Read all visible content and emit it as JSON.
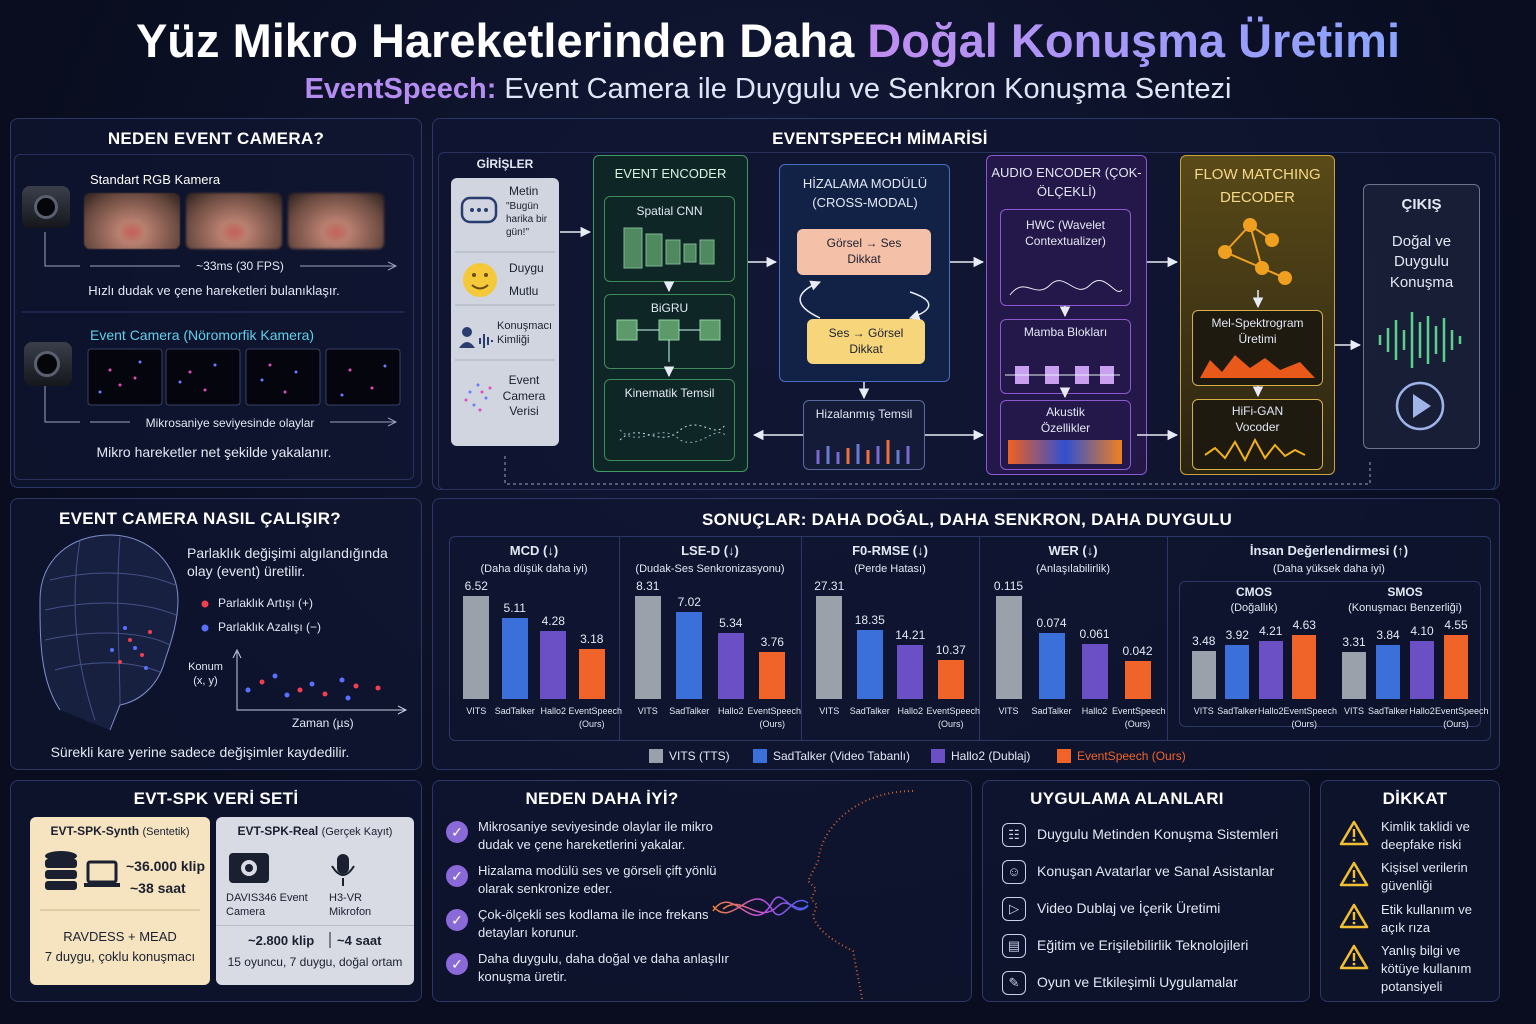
{
  "header": {
    "title_a": "Yüz Mikro Hareketlerinden Daha",
    "title_b": "Doğal Konuşma Üretimi",
    "subtitle_a": "EventSpeech:",
    "subtitle_b": "Event Camera ile Duygulu ve Senkron Konuşma Sentezi"
  },
  "why_event": {
    "title": "NEDEN EVENT CAMERA?",
    "rgb_label": "Standart RGB Kamera",
    "rgb_timing": "~33ms (30 FPS)",
    "rgb_note": "Hızlı dudak ve çene hareketleri bulanıklaşır.",
    "event_label": "Event Camera (Nöromorfik Kamera)",
    "event_timing": "Mikrosaniye seviyesinde olaylar",
    "event_note": "Mikro hareketler net şekilde yakalanır."
  },
  "how": {
    "title": "EVENT CAMERA NASIL ÇALIŞIR?",
    "desc": "Parlaklık değişimi algılandığında olay (event) üretilir.",
    "legend_pos": "Parlaklık Artışı (+)",
    "legend_neg": "Parlaklık Azalışı (−)",
    "y_label": "Konum (x, y)",
    "x_label": "Zaman (µs)",
    "note": "Sürekli kare yerine sadece değişimler kaydedilir."
  },
  "architecture": {
    "title": "EVENTSPEECH MİMARİSİ",
    "inputs": {
      "title": "GİRİŞLER",
      "text_label": "Metin",
      "text_example": "\"Bugün harika bir gün!\"",
      "emotion_label": "Duygu",
      "emotion_value": "Mutlu",
      "speaker": "Konuşmacı Kimliği",
      "event_data": "Event Camera Verisi"
    },
    "event_encoder": {
      "title": "EVENT ENCODER",
      "cnn": "Spatial CNN",
      "bigru": "BiGRU",
      "kinematic": "Kinematik Temsil"
    },
    "alignment": {
      "title": "HİZALAMA MODÜLÜ (CROSS-MODAL)",
      "v2a": "Görsel → Ses Dikkat",
      "a2v": "Ses → Görsel Dikkat",
      "aligned": "Hizalanmış Temsil"
    },
    "audio_encoder": {
      "title": "AUDIO ENCODER (ÇOK-ÖLÇEKLİ)",
      "hwc": "HWC (Wavelet Contextualizer)",
      "mamba": "Mamba Blokları",
      "acoustic": "Akustik Özellikler"
    },
    "decoder": {
      "title": "FLOW MATCHING DECODER",
      "mel": "Mel-Spektrogram Üretimi",
      "vocoder": "HiFi-GAN Vocoder"
    },
    "output": {
      "title": "ÇIKIŞ",
      "text": "Doğal ve Duygulu Konuşma"
    }
  },
  "results": {
    "title": "SONUÇLAR: DAHA DOĞAL, DAHA SENKRON, DAHA DUYGULU",
    "categories": [
      "VITS",
      "SadTalker",
      "Hallo2",
      "EventSpeech (Ours)"
    ],
    "colors": [
      "#9ba1aa",
      "#3b6fd9",
      "#6b4fc4",
      "#f0642a"
    ],
    "charts": [
      {
        "title": "MCD (↓)",
        "subtitle": "(Daha düşük daha iyi)",
        "values": [
          6.52,
          5.11,
          4.28,
          3.18
        ]
      },
      {
        "title": "LSE-D (↓)",
        "subtitle": "(Dudak-Ses Senkronizasyonu)",
        "values": [
          8.31,
          7.02,
          5.34,
          3.76
        ]
      },
      {
        "title": "F0-RMSE (↓)",
        "subtitle": "(Perde Hatası)",
        "values": [
          27.31,
          18.35,
          14.21,
          10.37
        ]
      },
      {
        "title": "WER (↓)",
        "subtitle": "(Anlaşılabilirlik)",
        "values": [
          0.115,
          0.074,
          0.061,
          0.042
        ]
      }
    ],
    "human": {
      "title": "İnsan Değerlendirmesi (↑)",
      "subtitle": "(Daha yüksek daha iyi)",
      "charts": [
        {
          "title": "CMOS",
          "subtitle": "(Doğallık)",
          "values": [
            3.48,
            3.92,
            4.21,
            4.63
          ]
        },
        {
          "title": "SMOS",
          "subtitle": "(Konuşmacı Benzerliği)",
          "values": [
            3.31,
            3.84,
            4.1,
            4.55
          ],
          "value_labels": [
            "3.31",
            "3.84",
            "4.10",
            "4.55"
          ]
        }
      ]
    },
    "legend": [
      "VITS (TTS)",
      "SadTalker (Video Tabanlı)",
      "Hallo2 (Dublaj)",
      "EventSpeech (Ours)"
    ]
  },
  "dataset": {
    "title": "EVT-SPK VERİ SETİ",
    "synth": {
      "name": "EVT-SPK-Synth",
      "kind": "(Sentetik)",
      "clips": "~36.000 klip",
      "hours": "~38 saat",
      "source": "RAVDESS + MEAD",
      "desc": "7 duygu, çoklu konuşmacı"
    },
    "real": {
      "name": "EVT-SPK-Real",
      "kind": "(Gerçek Kayıt)",
      "camera": "DAVIS346 Event Camera",
      "mic": "H3-VR Mikrofon",
      "clips": "~2.800 klip",
      "hours": "~4 saat",
      "desc": "15 oyuncu, 7 duygu, doğal ortam"
    }
  },
  "why_better": {
    "title": "NEDEN DAHA İYİ?",
    "items": [
      "Mikrosaniye seviyesinde olaylar ile mikro dudak ve çene hareketlerini yakalar.",
      "Hizalama modülü ses ve görseli çift yönlü olarak senkronize eder.",
      "Çok-ölçekli ses kodlama ile ince frekans detayları korunur.",
      "Daha duygulu, daha doğal ve daha anlaşılır konuşma üretir."
    ]
  },
  "applications": {
    "title": "UYGULAMA ALANLARI",
    "items": [
      "Duygulu Metinden Konuşma Sistemleri",
      "Konuşan Avatarlar ve Sanal Asistanlar",
      "Video Dublaj ve İçerik Üretimi",
      "Eğitim ve Erişilebilirlik Teknolojileri",
      "Oyun ve Etkileşimli Uygulamalar"
    ]
  },
  "caution": {
    "title": "DİKKAT",
    "items": [
      "Kimlik taklidi ve deepfake riski",
      "Kişisel verilerin güvenliği",
      "Etik kullanım ve açık rıza",
      "Yanlış bilgi ve kötüye kullanım potansiyeli"
    ]
  }
}
